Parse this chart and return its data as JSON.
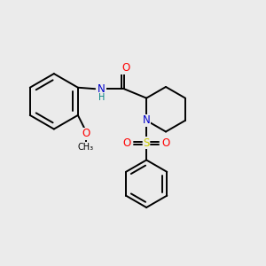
{
  "bg_color": "#ebebeb",
  "bond_color": "#000000",
  "atom_colors": {
    "O": "#ff0000",
    "N": "#0000cc",
    "S": "#cccc00",
    "H": "#008080",
    "C": "#000000"
  },
  "font_size_atom": 8.5,
  "font_size_small": 7.0,
  "lw": 1.4,
  "figsize": [
    3.0,
    3.0
  ],
  "dpi": 100,
  "xlim": [
    0,
    10
  ],
  "ylim": [
    0,
    10
  ]
}
